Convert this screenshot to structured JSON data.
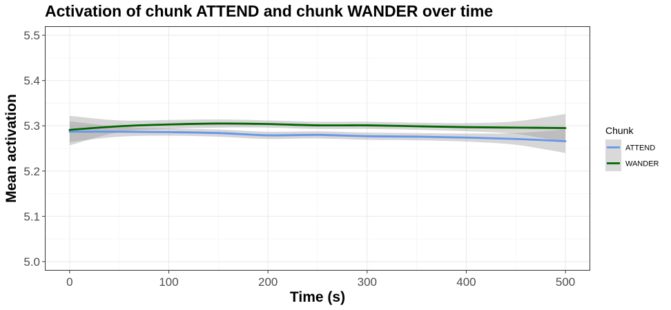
{
  "chart_data": {
    "type": "line",
    "title": "Activation of chunk ATTEND and chunk WANDER over time",
    "xlabel": "Time (s)",
    "ylabel": "Mean activation",
    "xlim": [
      -25,
      525
    ],
    "ylim": [
      4.98,
      5.52
    ],
    "x_ticks": [
      0,
      100,
      200,
      300,
      400,
      500
    ],
    "y_ticks": [
      5.0,
      5.1,
      5.2,
      5.3,
      5.4,
      5.5
    ],
    "x_tick_labels": [
      "0",
      "100",
      "200",
      "300",
      "400",
      "500"
    ],
    "y_tick_labels": [
      "5.0",
      "5.1",
      "5.2",
      "5.3",
      "5.4",
      "5.5"
    ],
    "grid": true,
    "legend": {
      "title": "Chunk",
      "position": "right"
    },
    "x": [
      0,
      50,
      100,
      150,
      200,
      250,
      300,
      350,
      400,
      450,
      500
    ],
    "series": [
      {
        "name": "ATTEND",
        "color": "#6495ed",
        "values": [
          5.287,
          5.287,
          5.286,
          5.284,
          5.279,
          5.28,
          5.277,
          5.276,
          5.274,
          5.271,
          5.266
        ],
        "ci_lower": [
          5.264,
          5.276,
          5.278,
          5.276,
          5.271,
          5.272,
          5.269,
          5.268,
          5.265,
          5.258,
          5.24
        ],
        "ci_upper": [
          5.31,
          5.298,
          5.294,
          5.292,
          5.287,
          5.288,
          5.285,
          5.284,
          5.283,
          5.284,
          5.292
        ]
      },
      {
        "name": "WANDER",
        "color": "#006400",
        "values": [
          5.291,
          5.299,
          5.303,
          5.305,
          5.304,
          5.301,
          5.301,
          5.299,
          5.297,
          5.296,
          5.295
        ],
        "ci_lower": [
          5.257,
          5.286,
          5.293,
          5.296,
          5.296,
          5.293,
          5.293,
          5.291,
          5.288,
          5.282,
          5.264
        ],
        "ci_upper": [
          5.322,
          5.312,
          5.313,
          5.314,
          5.312,
          5.309,
          5.309,
          5.307,
          5.306,
          5.31,
          5.326
        ]
      }
    ]
  }
}
